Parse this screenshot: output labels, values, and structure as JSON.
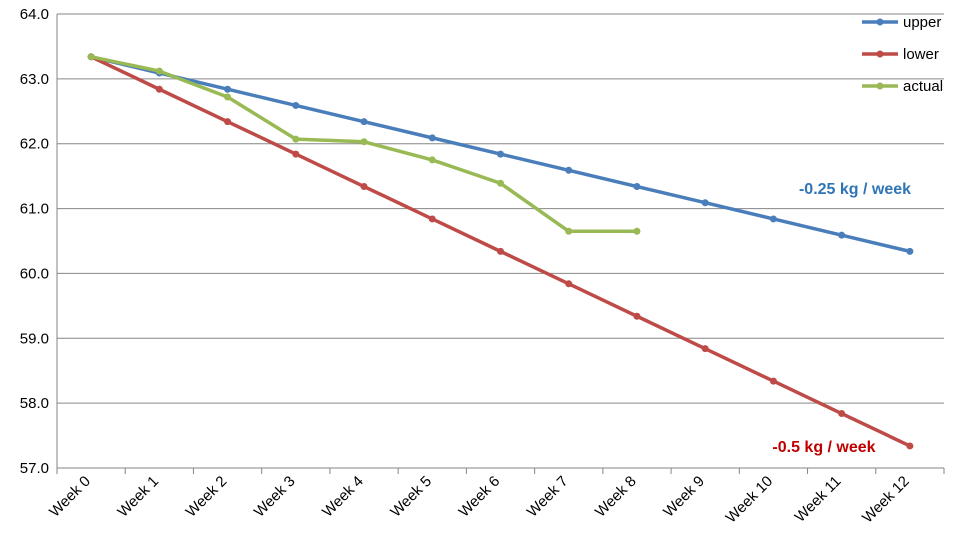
{
  "chart_data": {
    "type": "line",
    "categories": [
      "Week 0",
      "Week 1",
      "Week 2",
      "Week 3",
      "Week 4",
      "Week 5",
      "Week 6",
      "Week 7",
      "Week 8",
      "Week 9",
      "Week 10",
      "Week 11",
      "Week 12"
    ],
    "ylim": [
      57.0,
      64.0
    ],
    "ytick_labels": [
      "57.0",
      "58.0",
      "59.0",
      "60.0",
      "61.0",
      "62.0",
      "63.0",
      "64.0"
    ],
    "grid": true,
    "legend_position": "top-right",
    "series": [
      {
        "name": "upper",
        "color": "#4a7ebb",
        "values": [
          63.34,
          63.09,
          62.84,
          62.59,
          62.34,
          62.09,
          61.84,
          61.59,
          61.34,
          61.09,
          60.84,
          60.59,
          60.34
        ]
      },
      {
        "name": "lower",
        "color": "#be4b48",
        "values": [
          63.34,
          62.84,
          62.34,
          61.84,
          61.34,
          60.84,
          60.34,
          59.84,
          59.34,
          58.84,
          58.34,
          57.84,
          57.34
        ]
      },
      {
        "name": "actual",
        "color": "#98b954",
        "values": [
          63.34,
          63.12,
          62.72,
          62.07,
          62.03,
          61.75,
          61.39,
          60.65,
          60.65,
          null,
          null,
          null,
          null
        ]
      }
    ],
    "annotations": [
      {
        "text": "-0.25 kg / week",
        "color": "#2e75b6"
      },
      {
        "text": "-0.5 kg / week",
        "color": "#c00000"
      }
    ]
  }
}
